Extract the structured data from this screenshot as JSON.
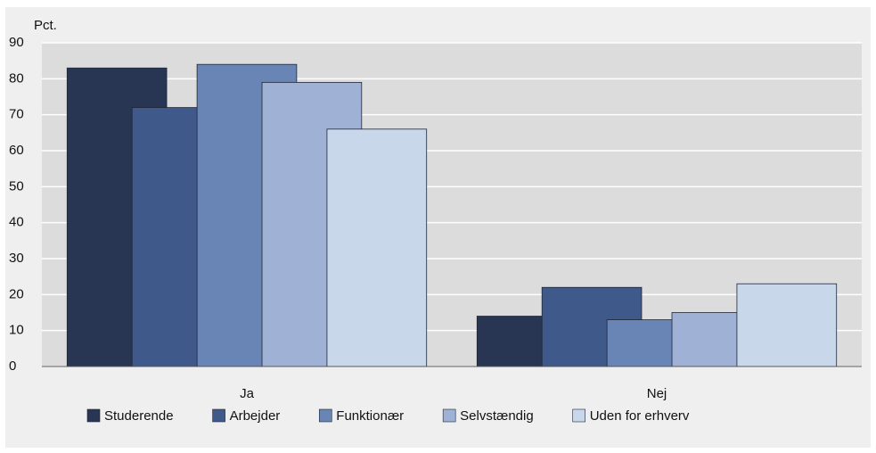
{
  "chart_data": {
    "type": "bar",
    "y_label": "Pct.",
    "categories": [
      "Ja",
      "Nej"
    ],
    "series": [
      {
        "name": "Studerende",
        "color": "#283654",
        "values": [
          83,
          14
        ]
      },
      {
        "name": "Arbejder",
        "color": "#3f5a8a",
        "values": [
          72,
          22
        ]
      },
      {
        "name": "Funktionær",
        "color": "#6885b5",
        "values": [
          84,
          13
        ]
      },
      {
        "name": "Selvstændig",
        "color": "#9fb2d6",
        "values": [
          79,
          15
        ]
      },
      {
        "name": "Uden for erhverv",
        "color": "#c8d7ea",
        "values": [
          66,
          23
        ]
      }
    ],
    "ylim": [
      0,
      90
    ],
    "yticks": [
      0,
      10,
      20,
      30,
      40,
      50,
      60,
      70,
      80,
      90
    ],
    "grid": true,
    "legend": "bottom"
  }
}
